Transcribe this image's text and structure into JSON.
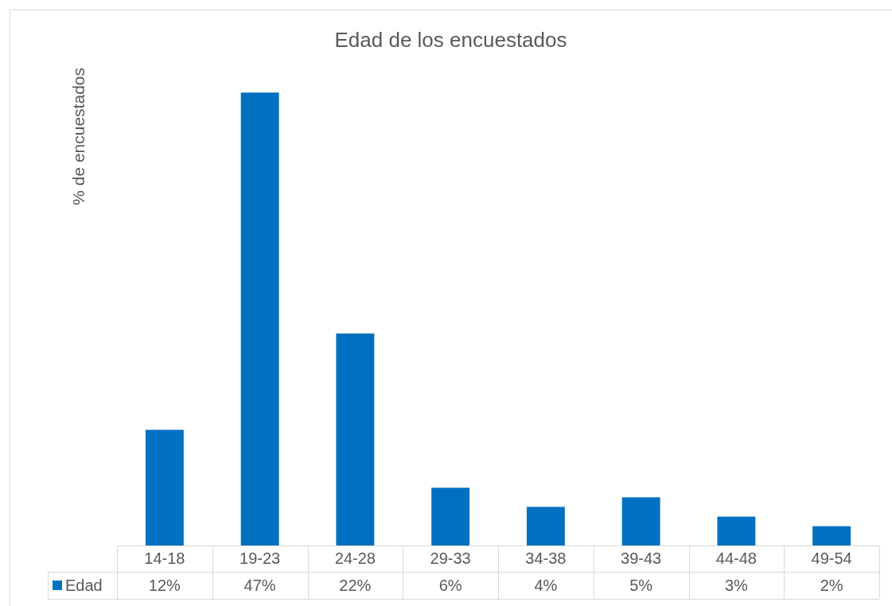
{
  "chart_data": {
    "type": "bar",
    "title": "Edad de los encuestados",
    "ylabel": "% de encuestados",
    "categories": [
      "14-18",
      "19-23",
      "24-28",
      "29-33",
      "34-38",
      "39-43",
      "44-48",
      "49-54"
    ],
    "series": [
      {
        "name": "Edad",
        "color": "#0070c0",
        "values": [
          12,
          47,
          22,
          6,
          4,
          5,
          3,
          2
        ],
        "value_labels": [
          "12%",
          "47%",
          "22%",
          "6%",
          "4%",
          "5%",
          "3%",
          "2%"
        ]
      }
    ],
    "legend": "bottom"
  }
}
